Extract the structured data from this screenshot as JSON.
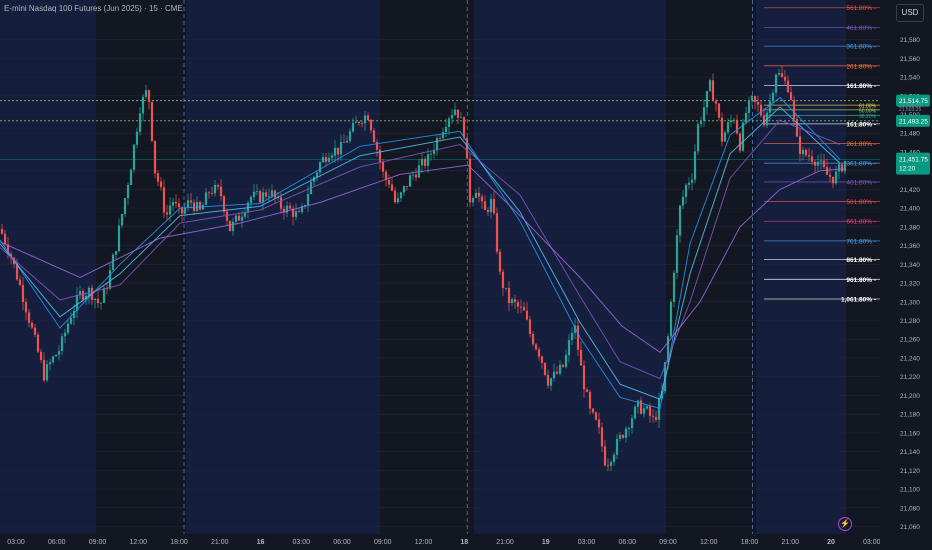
{
  "header": {
    "title": "E-mini Nasdaq 100 Futures (Jun 2025) · 15 · CME",
    "currency_button": "USD"
  },
  "icons": {
    "alert": "lightning-bolt-icon"
  },
  "colors": {
    "bull": "#26a69a",
    "bear": "#ef5350",
    "background": "#131722",
    "session_bg": "#172554",
    "price_tag": "#089981",
    "dotted_line": "#7cc26a"
  },
  "chart_data": {
    "type": "candlestick",
    "title": "E-mini Nasdaq 100 Futures (Jun 2025) · 15 · CME",
    "ylim": [
      21052,
      21618
    ],
    "y_ticks": [
      21060,
      21080,
      21100,
      21120,
      21140,
      21160,
      21180,
      21200,
      21220,
      21240,
      21260,
      21280,
      21300,
      21320,
      21340,
      21360,
      21380,
      21400,
      21420,
      21440,
      21460,
      21480,
      21500,
      21520,
      21540,
      21560,
      21580
    ],
    "x_ticks": [
      "03:00",
      "06:00",
      "09:00",
      "12:00",
      "18:00",
      "21:00",
      "16",
      "03:00",
      "06:00",
      "09:00",
      "12:00",
      "18",
      "21:00",
      "19",
      "03:00",
      "06:00",
      "09:00",
      "12:00",
      "18:00",
      "21:00",
      "20",
      "03:00"
    ],
    "session_separators": [
      "18:00",
      "18",
      "18:00"
    ],
    "current_price": {
      "value": "21,451.75",
      "countdown": "12:20"
    },
    "dotted_levels": [
      {
        "value": 21514.75,
        "label": "21,514.75"
      },
      {
        "value": 21493.25,
        "label": "21,493.25"
      }
    ],
    "hidden_tags": [
      "21,508.00",
      "21,503.25"
    ],
    "fib_levels": [
      {
        "label": "561.80%",
        "value": 21614,
        "color": "#e5534b"
      },
      {
        "label": "461.80%",
        "value": 21593,
        "color": "#7e57c2"
      },
      {
        "label": "361.80%",
        "value": 21573,
        "color": "#42a5f5"
      },
      {
        "label": "261.80%",
        "value": 21552,
        "color": "#ff7043"
      },
      {
        "label": "161.80%",
        "value": 21531,
        "color": "#ffffff"
      },
      {
        "label": "61.80%",
        "value": 21510,
        "color": "#ffd54f"
      },
      {
        "label": "50.00%",
        "value": 21505,
        "color": "#9ccc65"
      },
      {
        "label": "38.20%",
        "value": 21499,
        "color": "#26a69a"
      },
      {
        "label": "161.80%",
        "value": 21490,
        "color": "#ffffff"
      },
      {
        "label": "261.80%",
        "value": 21469,
        "color": "#ff7043"
      },
      {
        "label": "361.80%",
        "value": 21448,
        "color": "#42a5f5"
      },
      {
        "label": "461.80%",
        "value": 21428,
        "color": "#7e57c2"
      },
      {
        "label": "561.80%",
        "value": 21407,
        "color": "#e5534b"
      },
      {
        "label": "661.80%",
        "value": 21386,
        "color": "#ec407a"
      },
      {
        "label": "761.80%",
        "value": 21365,
        "color": "#42a5f5"
      },
      {
        "label": "861.80%",
        "value": 21345,
        "color": "#ffffff"
      },
      {
        "label": "961.80%",
        "value": 21324,
        "color": "#ffffff"
      },
      {
        "label": "1,061.80%",
        "value": 21303,
        "color": "#ffffff"
      }
    ],
    "price_path": [
      [
        0,
        21378
      ],
      [
        10,
        21352
      ],
      [
        22,
        21310
      ],
      [
        34,
        21262
      ],
      [
        44,
        21222
      ],
      [
        52,
        21238
      ],
      [
        60,
        21250
      ],
      [
        70,
        21284
      ],
      [
        80,
        21308
      ],
      [
        90,
        21312
      ],
      [
        100,
        21296
      ],
      [
        108,
        21322
      ],
      [
        116,
        21360
      ],
      [
        124,
        21405
      ],
      [
        132,
        21452
      ],
      [
        140,
        21508
      ],
      [
        148,
        21528
      ],
      [
        155,
        21440
      ],
      [
        160,
        21422
      ],
      [
        166,
        21390
      ],
      [
        172,
        21410
      ],
      [
        180,
        21392
      ],
      [
        190,
        21408
      ],
      [
        200,
        21396
      ],
      [
        210,
        21420
      ],
      [
        220,
        21418
      ],
      [
        230,
        21378
      ],
      [
        240,
        21392
      ],
      [
        250,
        21412
      ],
      [
        260,
        21412
      ],
      [
        270,
        21418
      ],
      [
        280,
        21402
      ],
      [
        290,
        21398
      ],
      [
        300,
        21390
      ],
      [
        310,
        21424
      ],
      [
        320,
        21448
      ],
      [
        330,
        21462
      ],
      [
        340,
        21462
      ],
      [
        350,
        21480
      ],
      [
        360,
        21496
      ],
      [
        368,
        21500
      ],
      [
        376,
        21468
      ],
      [
        384,
        21432
      ],
      [
        390,
        21428
      ],
      [
        396,
        21402
      ],
      [
        402,
        21416
      ],
      [
        410,
        21432
      ],
      [
        418,
        21442
      ],
      [
        428,
        21452
      ],
      [
        438,
        21476
      ],
      [
        448,
        21498
      ],
      [
        456,
        21508
      ],
      [
        464,
        21482
      ],
      [
        470,
        21410
      ],
      [
        476,
        21422
      ],
      [
        484,
        21394
      ],
      [
        492,
        21408
      ],
      [
        500,
        21328
      ],
      [
        508,
        21302
      ],
      [
        516,
        21296
      ],
      [
        524,
        21288
      ],
      [
        530,
        21266
      ],
      [
        540,
        21244
      ],
      [
        548,
        21216
      ],
      [
        556,
        21222
      ],
      [
        564,
        21232
      ],
      [
        574,
        21278
      ],
      [
        582,
        21222
      ],
      [
        590,
        21182
      ],
      [
        598,
        21166
      ],
      [
        606,
        21126
      ],
      [
        614,
        21142
      ],
      [
        622,
        21158
      ],
      [
        630,
        21174
      ],
      [
        638,
        21188
      ],
      [
        646,
        21184
      ],
      [
        654,
        21172
      ],
      [
        662,
        21202
      ],
      [
        668,
        21262
      ],
      [
        674,
        21336
      ],
      [
        680,
        21400
      ],
      [
        686,
        21424
      ],
      [
        692,
        21436
      ],
      [
        698,
        21488
      ],
      [
        704,
        21508
      ],
      [
        710,
        21530
      ],
      [
        716,
        21512
      ],
      [
        722,
        21474
      ],
      [
        728,
        21488
      ],
      [
        734,
        21498
      ],
      [
        740,
        21468
      ],
      [
        746,
        21502
      ],
      [
        752,
        21514
      ],
      [
        758,
        21508
      ],
      [
        764,
        21494
      ],
      [
        770,
        21514
      ],
      [
        776,
        21546
      ],
      [
        782,
        21538
      ],
      [
        790,
        21528
      ],
      [
        796,
        21474
      ],
      [
        802,
        21458
      ],
      [
        810,
        21456
      ],
      [
        818,
        21450
      ],
      [
        826,
        21436
      ],
      [
        834,
        21432
      ],
      [
        840,
        21442
      ],
      [
        846,
        21452
      ]
    ],
    "moving_averages": [
      {
        "name": "ma1",
        "color": "#2196f3",
        "path": [
          [
            0,
            21366
          ],
          [
            60,
            21272
          ],
          [
            120,
            21340
          ],
          [
            180,
            21400
          ],
          [
            260,
            21405
          ],
          [
            360,
            21466
          ],
          [
            460,
            21482
          ],
          [
            520,
            21386
          ],
          [
            580,
            21262
          ],
          [
            620,
            21198
          ],
          [
            660,
            21186
          ],
          [
            690,
            21362
          ],
          [
            730,
            21478
          ],
          [
            780,
            21518
          ],
          [
            840,
            21452
          ]
        ]
      },
      {
        "name": "ma2",
        "color": "#4fc3f7",
        "path": [
          [
            0,
            21362
          ],
          [
            60,
            21284
          ],
          [
            120,
            21330
          ],
          [
            180,
            21392
          ],
          [
            260,
            21402
          ],
          [
            360,
            21456
          ],
          [
            460,
            21476
          ],
          [
            520,
            21396
          ],
          [
            580,
            21278
          ],
          [
            620,
            21212
          ],
          [
            660,
            21196
          ],
          [
            690,
            21330
          ],
          [
            730,
            21458
          ],
          [
            780,
            21508
          ],
          [
            840,
            21448
          ]
        ]
      },
      {
        "name": "ma3",
        "color": "#7e57c2",
        "path": [
          [
            0,
            21358
          ],
          [
            60,
            21302
          ],
          [
            120,
            21318
          ],
          [
            180,
            21384
          ],
          [
            260,
            21398
          ],
          [
            360,
            21444
          ],
          [
            460,
            21468
          ],
          [
            520,
            21414
          ],
          [
            580,
            21306
          ],
          [
            620,
            21236
          ],
          [
            660,
            21218
          ],
          [
            690,
            21300
          ],
          [
            730,
            21432
          ],
          [
            780,
            21494
          ],
          [
            840,
            21468
          ]
        ]
      },
      {
        "name": "ma4",
        "color": "#9c6ade",
        "path": [
          [
            0,
            21364
          ],
          [
            80,
            21326
          ],
          [
            160,
            21368
          ],
          [
            240,
            21384
          ],
          [
            320,
            21406
          ],
          [
            400,
            21436
          ],
          [
            468,
            21446
          ],
          [
            520,
            21392
          ],
          [
            580,
            21326
          ],
          [
            622,
            21274
          ],
          [
            660,
            21246
          ],
          [
            700,
            21300
          ],
          [
            740,
            21380
          ],
          [
            780,
            21420
          ],
          [
            820,
            21440
          ],
          [
            846,
            21442
          ]
        ]
      }
    ]
  }
}
